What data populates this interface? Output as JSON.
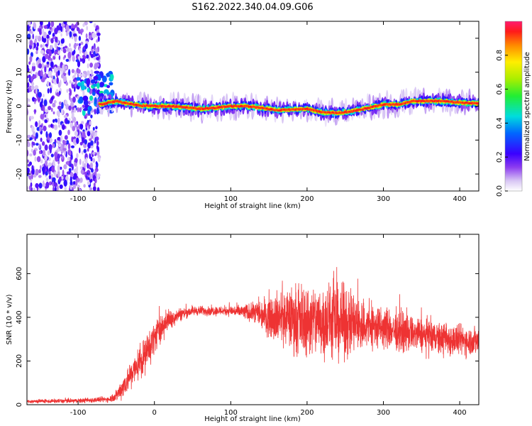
{
  "title": "S162.2022.340.04.09.G06",
  "chart_data": [
    {
      "type": "heatmap",
      "xlabel": "Height of straight line (km)",
      "ylabel": "Frequency (Hz)",
      "xlim": [
        -167,
        425
      ],
      "ylim": [
        -25,
        25
      ],
      "xticks": [
        -100,
        0,
        100,
        200,
        300,
        400
      ],
      "yticks": [
        -20,
        -10,
        0,
        10,
        20
      ],
      "colorbar": {
        "label": "Normalized spectral amplitude",
        "ticks": [
          0.0,
          0.2,
          0.4,
          0.6,
          0.8
        ],
        "range": [
          0,
          1
        ],
        "colormap": "rainbow"
      },
      "ridge": {
        "x": [
          -70,
          -50,
          -40,
          -20,
          0,
          20,
          40,
          60,
          80,
          100,
          120,
          140,
          160,
          180,
          200,
          220,
          240,
          260,
          280,
          300,
          320,
          340,
          360,
          380,
          400,
          425
        ],
        "y": [
          0.5,
          1.5,
          1.0,
          0.2,
          0.0,
          0.0,
          -0.3,
          -0.8,
          -0.5,
          0.0,
          0.0,
          -0.5,
          -1.2,
          -1.0,
          -0.8,
          -1.8,
          -2.0,
          -1.5,
          -0.5,
          0.5,
          0.5,
          1.5,
          1.5,
          1.5,
          1.0,
          0.8
        ]
      }
    },
    {
      "type": "line",
      "xlabel": "Height of straight line (km)",
      "ylabel": "SNR (10 * v/v)",
      "xlim": [
        -167,
        425
      ],
      "ylim": [
        0,
        780
      ],
      "xticks": [
        -100,
        0,
        100,
        200,
        300,
        400
      ],
      "yticks": [
        0,
        200,
        400,
        600
      ],
      "color": "#ee3333",
      "envelope": {
        "x": [
          -167,
          -100,
          -60,
          -50,
          -40,
          -30,
          -20,
          -10,
          0,
          10,
          20,
          30,
          50,
          80,
          100,
          130,
          150,
          170,
          200,
          230,
          260,
          280,
          300,
          320,
          350,
          380,
          400,
          425
        ],
        "mean": [
          15,
          18,
          25,
          40,
          90,
          140,
          190,
          240,
          310,
          360,
          390,
          410,
          430,
          430,
          430,
          420,
          410,
          400,
          385,
          380,
          370,
          360,
          350,
          335,
          320,
          300,
          295,
          290
        ],
        "spread": [
          8,
          10,
          12,
          25,
          50,
          60,
          70,
          75,
          70,
          55,
          40,
          30,
          20,
          20,
          22,
          40,
          90,
          120,
          150,
          160,
          140,
          110,
          90,
          80,
          70,
          70,
          65,
          60
        ]
      }
    }
  ]
}
